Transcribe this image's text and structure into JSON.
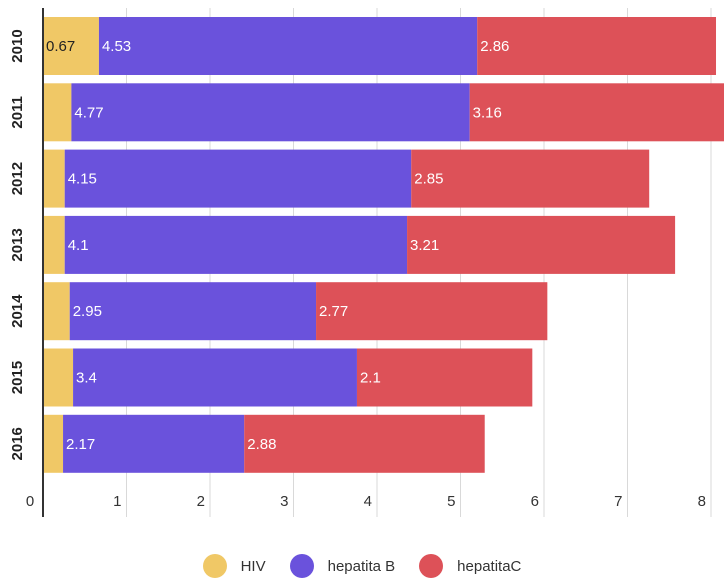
{
  "chart_data": {
    "type": "bar",
    "orientation": "horizontal",
    "stacked": true,
    "categories": [
      "2010",
      "2011",
      "2012",
      "2013",
      "2014",
      "2015",
      "2016"
    ],
    "series": [
      {
        "name": "HIV",
        "color": "#F0C866",
        "values": [
          0.67,
          0.34,
          0.26,
          0.26,
          0.32,
          0.36,
          0.24
        ],
        "labels": [
          "0.67",
          "",
          "",
          "",
          "",
          "",
          ""
        ]
      },
      {
        "name": "hepatita B",
        "color": "#6A52DC",
        "values": [
          4.53,
          4.77,
          4.15,
          4.1,
          2.95,
          3.4,
          2.17
        ],
        "labels": [
          "4.53",
          "4.77",
          "4.15",
          "4.1",
          "2.95",
          "3.4",
          "2.17"
        ]
      },
      {
        "name": "hepatitaC",
        "color": "#DD5158",
        "values": [
          2.86,
          3.16,
          2.85,
          3.21,
          2.77,
          2.1,
          2.88
        ],
        "labels": [
          "2.86",
          "3.16",
          "2.85",
          "3.21",
          "2.77",
          "2.1",
          "2.88"
        ]
      }
    ],
    "x_ticks": [
      "0",
      "1",
      "2",
      "3",
      "4",
      "5",
      "6",
      "7",
      "8"
    ],
    "xlim": [
      0,
      8.1
    ],
    "grid": true,
    "legend_position": "bottom",
    "title": "",
    "xlabel": "",
    "ylabel": ""
  }
}
